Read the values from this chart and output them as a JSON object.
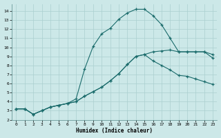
{
  "xlabel": "Humidex (Indice chaleur)",
  "bg_color": "#cce8e8",
  "grid_color": "#aacfcf",
  "line_color": "#1a6b6b",
  "xlim": [
    -0.5,
    23.5
  ],
  "ylim": [
    2,
    14.8
  ],
  "xticks": [
    0,
    1,
    2,
    3,
    4,
    5,
    6,
    7,
    8,
    9,
    10,
    11,
    12,
    13,
    14,
    15,
    16,
    17,
    18,
    19,
    20,
    21,
    22,
    23
  ],
  "yticks": [
    2,
    3,
    4,
    5,
    6,
    7,
    8,
    9,
    10,
    11,
    12,
    13,
    14
  ],
  "line_peak_x": [
    0,
    1,
    2,
    3,
    4,
    5,
    6,
    7,
    8,
    9,
    10,
    11,
    12,
    13,
    14,
    15,
    16,
    17,
    18,
    19,
    20,
    21,
    22,
    23
  ],
  "line_peak_y": [
    3.2,
    3.2,
    2.6,
    3.0,
    3.4,
    3.6,
    3.8,
    4.3,
    7.6,
    10.1,
    11.5,
    12.1,
    13.1,
    13.8,
    14.2,
    14.2,
    13.5,
    12.5,
    11.0,
    9.5,
    9.5,
    9.5,
    9.5,
    9.2
  ],
  "line_mid_x": [
    0,
    1,
    2,
    3,
    4,
    5,
    6,
    7,
    8,
    9,
    10,
    11,
    12,
    13,
    14,
    15,
    16,
    17,
    18,
    19,
    20,
    21,
    22,
    23
  ],
  "line_mid_y": [
    3.2,
    3.2,
    2.6,
    3.0,
    3.4,
    3.6,
    3.8,
    4.0,
    4.6,
    5.1,
    5.6,
    6.3,
    7.1,
    8.1,
    9.0,
    9.2,
    9.5,
    9.6,
    9.7,
    9.5,
    9.5,
    9.5,
    9.5,
    8.8
  ],
  "line_low_x": [
    0,
    1,
    2,
    3,
    4,
    5,
    6,
    7,
    8,
    9,
    10,
    11,
    12,
    13,
    14,
    15,
    16,
    17,
    18,
    19,
    20,
    21,
    22,
    23
  ],
  "line_low_y": [
    3.2,
    3.2,
    2.6,
    3.0,
    3.4,
    3.6,
    3.8,
    4.0,
    4.6,
    5.1,
    5.6,
    6.3,
    7.1,
    8.1,
    9.0,
    9.2,
    8.5,
    8.0,
    7.5,
    6.9,
    6.8,
    6.5,
    6.2,
    5.9
  ]
}
